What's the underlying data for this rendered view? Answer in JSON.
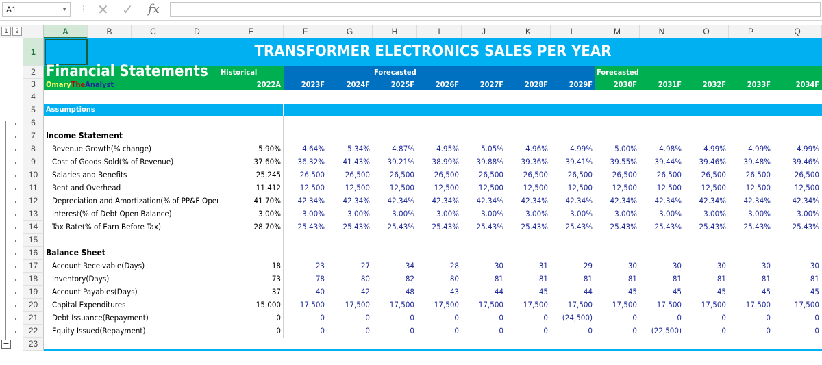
{
  "formula_bar": {
    "name_box": "A1",
    "fx_label": "fx",
    "formula": ""
  },
  "outline_levels": [
    "1",
    "2"
  ],
  "columns": [
    "A",
    "B",
    "C",
    "D",
    "E",
    "F",
    "G",
    "H",
    "I",
    "J",
    "K",
    "L",
    "M",
    "N",
    "O",
    "P",
    "Q"
  ],
  "selected_column": "A",
  "selected_row": "1",
  "rows": [
    "1",
    "2",
    "3",
    "4",
    "5",
    "6",
    "7",
    "8",
    "9",
    "10",
    "11",
    "12",
    "13",
    "14",
    "15",
    "16",
    "17",
    "18",
    "19",
    "20",
    "21",
    "22",
    "23"
  ],
  "colors": {
    "title_band": "#00b0f0",
    "header_green": "#00b050",
    "header_blue": "#0070c0",
    "input_blue": "#1f2a99"
  },
  "sheet": {
    "title": "TRANSFORMER ELECTRONICS SALES PER YEAR",
    "heading": "Financial Statements",
    "author_part1": "Omary",
    "author_part2": "The",
    "author_part3": "Analyst",
    "historical_label": "Historical",
    "forecasted_label_1": "Forecasted",
    "forecasted_label_2": "Forecasted",
    "years": [
      "2022A",
      "2023F",
      "2024F",
      "2025F",
      "2026F",
      "2027F",
      "2028F",
      "2029F",
      "2030F",
      "2031F",
      "2032F",
      "2033F",
      "2034F"
    ],
    "assumptions_label": "Assumptions",
    "income_statement_label": "Income Statement",
    "balance_sheet_label": "Balance Sheet",
    "income_rows": [
      {
        "label": "Revenue Growth(% change)",
        "values": [
          "5.90%",
          "4.64%",
          "5.34%",
          "4.87%",
          "4.95%",
          "5.05%",
          "4.96%",
          "4.99%",
          "5.00%",
          "4.98%",
          "4.99%",
          "4.99%",
          "4.99%"
        ]
      },
      {
        "label": "Cost of Goods Sold(% of Revenue)",
        "values": [
          "37.60%",
          "36.32%",
          "41.43%",
          "39.21%",
          "38.99%",
          "39.88%",
          "39.36%",
          "39.41%",
          "39.55%",
          "39.44%",
          "39.46%",
          "39.48%",
          "39.46%"
        ]
      },
      {
        "label": "Salaries and Benefits",
        "values": [
          "25,245",
          "26,500",
          "26,500",
          "26,500",
          "26,500",
          "26,500",
          "26,500",
          "26,500",
          "26,500",
          "26,500",
          "26,500",
          "26,500",
          "26,500"
        ]
      },
      {
        "label": "Rent and Overhead",
        "values": [
          "11,412",
          "12,500",
          "12,500",
          "12,500",
          "12,500",
          "12,500",
          "12,500",
          "12,500",
          "12,500",
          "12,500",
          "12,500",
          "12,500",
          "12,500"
        ]
      },
      {
        "label": "Depreciation and Amortization(% of PP&E Open Balance)",
        "values": [
          "41.70%",
          "42.34%",
          "42.34%",
          "42.34%",
          "42.34%",
          "42.34%",
          "42.34%",
          "42.34%",
          "42.34%",
          "42.34%",
          "42.34%",
          "42.34%",
          "42.34%"
        ]
      },
      {
        "label": "Interest(% of Debt Open Balance)",
        "values": [
          "3.00%",
          "3.00%",
          "3.00%",
          "3.00%",
          "3.00%",
          "3.00%",
          "3.00%",
          "3.00%",
          "3.00%",
          "3.00%",
          "3.00%",
          "3.00%",
          "3.00%"
        ]
      },
      {
        "label": "Tax Rate(% of Earn Before Tax)",
        "values": [
          "28.70%",
          "25.43%",
          "25.43%",
          "25.43%",
          "25.43%",
          "25.43%",
          "25.43%",
          "25.43%",
          "25.43%",
          "25.43%",
          "25.43%",
          "25.43%",
          "25.43%"
        ]
      }
    ],
    "balance_rows": [
      {
        "label": "Account Receivable(Days)",
        "values": [
          "18",
          "23",
          "27",
          "34",
          "28",
          "30",
          "31",
          "29",
          "30",
          "30",
          "30",
          "30",
          "30"
        ]
      },
      {
        "label": "Inventory(Days)",
        "values": [
          "73",
          "78",
          "80",
          "82",
          "80",
          "81",
          "81",
          "81",
          "81",
          "81",
          "81",
          "81",
          "81"
        ]
      },
      {
        "label": "Account Payables(Days)",
        "values": [
          "37",
          "40",
          "42",
          "48",
          "43",
          "44",
          "45",
          "44",
          "45",
          "45",
          "45",
          "45",
          "45"
        ]
      },
      {
        "label": "Capital Expenditures",
        "values": [
          "15,000",
          "17,500",
          "17,500",
          "17,500",
          "17,500",
          "17,500",
          "17,500",
          "17,500",
          "17,500",
          "17,500",
          "17,500",
          "17,500",
          "17,500"
        ]
      },
      {
        "label": "Debt Issuance(Repayment)",
        "values": [
          "0",
          "0",
          "0",
          "0",
          "0",
          "0",
          "0",
          "(24,500)",
          "0",
          "0",
          "0",
          "0",
          "0"
        ]
      },
      {
        "label": "Equity Issued(Repayment)",
        "values": [
          "0",
          "0",
          "0",
          "0",
          "0",
          "0",
          "0",
          "0",
          "0",
          "(22,500)",
          "0",
          "0",
          "0"
        ]
      }
    ]
  }
}
